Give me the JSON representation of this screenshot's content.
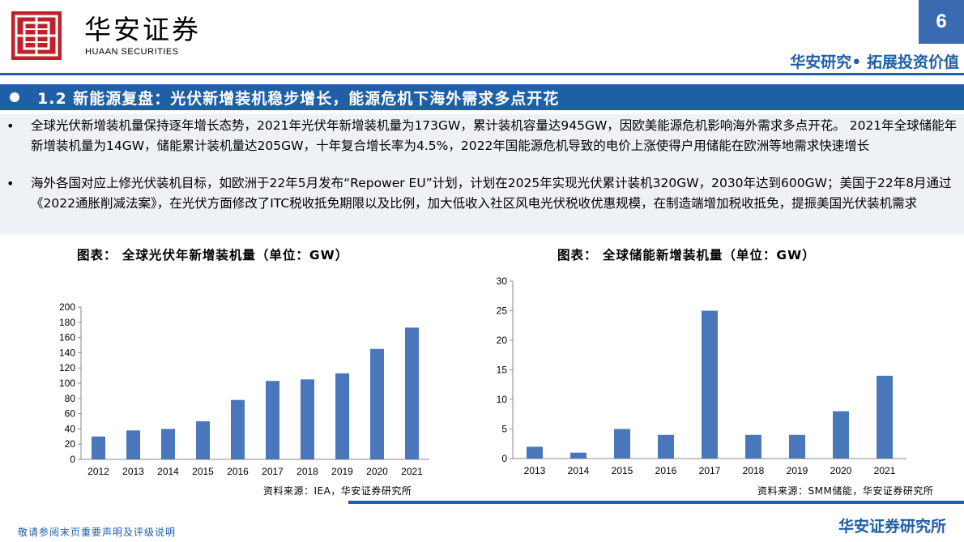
{
  "header": {
    "logo_cn": "华安证券",
    "logo_en": "HUAAN SECURITIES",
    "page_number": "6",
    "tagline": "华安研究• 拓展投资价值",
    "accent_color": "#1f5fa6",
    "logo_color": "#c0202a"
  },
  "section": {
    "title": "1.2 新能源复盘：光伏新增装机稳步增长，能源危机下海外需求多点开花"
  },
  "bullets": [
    {
      "mark": "•",
      "text": "全球光伏新增装机量保持逐年增长态势，2021年光伏年新增装机量为173GW，累计装机容量达945GW，因欧美能源危机影响海外需求多点开花。 2021年全球储能年新增装机量为14GW，储能累计装机量达205GW，十年复合增长率为4.5%，2022年国能源危机导致的电价上涨使得户用储能在欧洲等地需求快速增长"
    },
    {
      "mark": "•",
      "text": "海外各国对应上修光伏装机目标，如欧洲于22年5月发布“Repower EU”计划，计划在2025年实现光伏累计装机320GW，2030年达到600GW；美国于22年8月通过《2022通胀削减法案》，在光伏方面修改了ITC税收抵免期限以及比例，加大低收入社区风电光伏税收优惠规模，在制造端增加税收抵免，提振美国光伏装机需求"
    }
  ],
  "charts": [
    {
      "heading": "图表：  全球光伏年新增装机量（单位：GW）",
      "source": "资料来源：IEA，华安证券研究所"
    },
    {
      "heading": "图表：  全球储能新增装机量（单位：GW）",
      "source": "资料来源：SMM储能，华安证券研究所"
    }
  ],
  "chart_data": [
    {
      "type": "bar",
      "title": "全球光伏年新增装机量（单位：GW）",
      "categories": [
        "2012",
        "2013",
        "2014",
        "2015",
        "2016",
        "2017",
        "2018",
        "2019",
        "2020",
        "2021"
      ],
      "values": [
        30,
        38,
        40,
        50,
        78,
        103,
        105,
        113,
        145,
        173
      ],
      "ylim": [
        0,
        200
      ],
      "yticks": [
        0,
        20,
        40,
        60,
        80,
        100,
        120,
        140,
        160,
        180,
        200
      ],
      "bar_color": "#4a77bc",
      "grid": false
    },
    {
      "type": "bar",
      "title": "全球储能新增装机量（单位：GW）",
      "categories": [
        "2013",
        "2014",
        "2015",
        "2016",
        "2017",
        "2018",
        "2019",
        "2020",
        "2021"
      ],
      "values": [
        2,
        1,
        5,
        4,
        25,
        4,
        4,
        8,
        14
      ],
      "ylim": [
        0,
        30
      ],
      "yticks": [
        0,
        5,
        10,
        15,
        20,
        25,
        30
      ],
      "bar_color": "#4a77bc",
      "grid": false
    }
  ],
  "footer": {
    "disclaimer": "敬请参阅末页重要声明及评级说明",
    "org": "华安证券研究所"
  }
}
